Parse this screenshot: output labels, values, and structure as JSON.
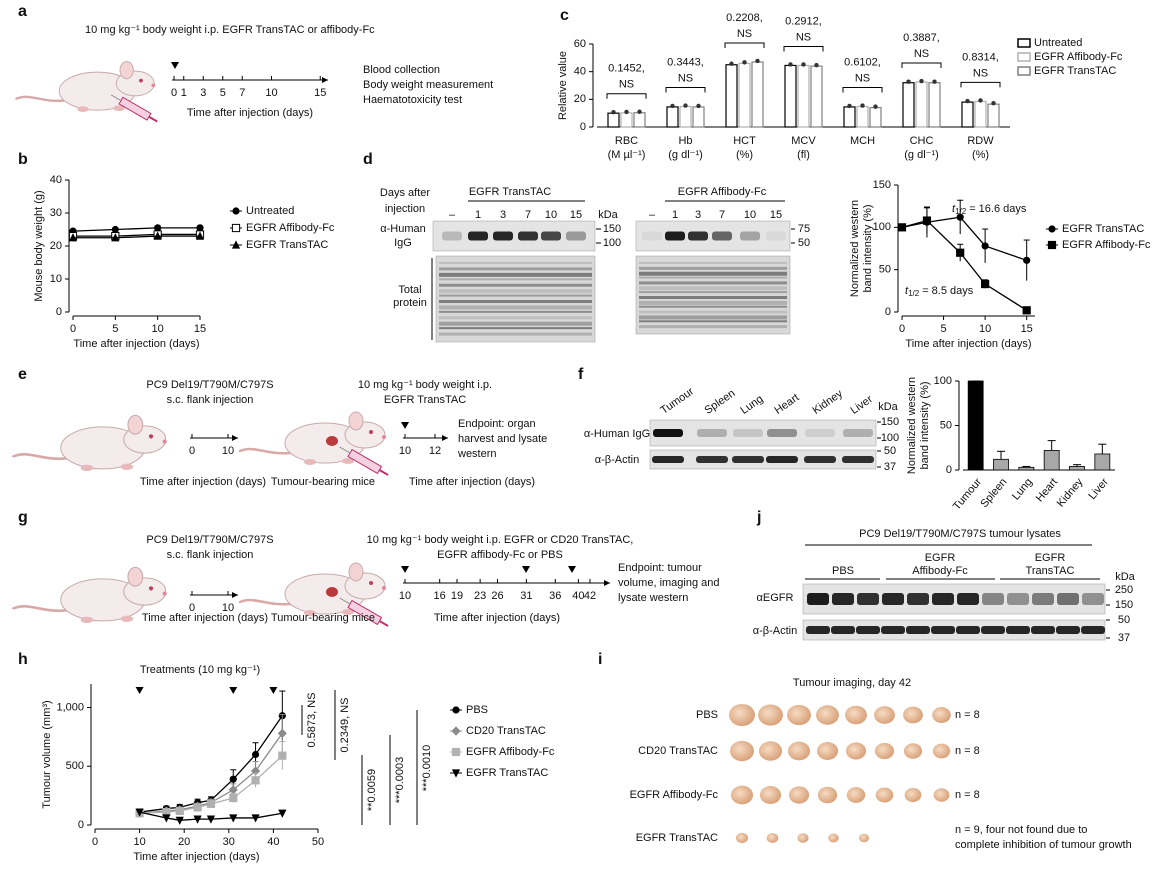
{
  "figure": {
    "panel_letters": [
      "a",
      "b",
      "c",
      "d",
      "e",
      "f",
      "g",
      "h",
      "i",
      "j"
    ],
    "a": {
      "dose": "10 mg kg⁻¹ body weight i.p. EGFR TransTAC or affibody-Fc",
      "timeline_ticks": [
        0,
        1,
        3,
        5,
        7,
        10,
        15
      ],
      "timeline_label": "Time after injection (days)",
      "outcomes": [
        "Blood collection",
        "Body weight measurement",
        "Haematotoxicity test"
      ]
    },
    "d": {
      "header": [
        "Days after",
        "injection"
      ],
      "groups": [
        "EGFR TransTAC",
        "EGFR Affibody-Fc"
      ],
      "lanes": [
        "–",
        "1",
        "3",
        "7",
        "10",
        "15"
      ],
      "kda": "kDa",
      "markers_left_blot": [
        "150",
        "100"
      ],
      "markers_right_blot": [
        "75",
        "50"
      ],
      "igg_label": [
        "α-Human",
        "IgG"
      ],
      "protein_label": [
        "Total",
        "protein"
      ]
    },
    "e": {
      "cell_line": [
        "PC9 Del19/T790M/C797S",
        "s.c. flank injection"
      ],
      "timeline1_ticks": [
        0,
        10
      ],
      "timeline_label": "Time after injection (days)",
      "mice_label": "Tumour-bearing mice",
      "dose": [
        "10 mg kg⁻¹ body weight i.p.",
        "EGFR TransTAC"
      ],
      "timeline2_ticks": [
        10,
        12
      ],
      "endpoint": [
        "Endpoint: organ",
        "harvest and lysate",
        "western"
      ]
    },
    "f": {
      "tissues": [
        "Tumour",
        "Spleen",
        "Lung",
        "Heart",
        "Kidney",
        "Liver"
      ],
      "kda": "kDa",
      "markers": [
        "150",
        "100",
        "50",
        "37"
      ],
      "rows": [
        "α-Human IgG",
        "α-β-Actin"
      ]
    },
    "g": {
      "cell_line": [
        "PC9 Del19/T790M/C797S",
        "s.c. flank injection"
      ],
      "timeline1_ticks": [
        0,
        10
      ],
      "timeline_label": "Time after injection (days)",
      "mice_label": "Tumour-bearing mice",
      "dose": [
        "10 mg kg⁻¹ body weight i.p. EGFR or CD20 TransTAC,",
        "EGFR affibody-Fc or PBS"
      ],
      "timeline2_ticks": [
        10,
        16,
        19,
        23,
        26,
        31,
        36,
        40,
        42
      ],
      "endpoint": [
        "Endpoint: tumour",
        "volume, imaging and",
        "lysate western"
      ]
    },
    "i": {
      "title": "Tumour imaging, day 42",
      "groups": [
        "PBS",
        "CD20 TransTAC",
        "EGFR Affibody-Fc",
        "EGFR TransTAC"
      ],
      "n_labels": [
        [
          "n = 8"
        ],
        [
          "n = 8"
        ],
        [
          "n = 8"
        ],
        [
          "n = 9, four not found due to",
          "complete inhibition of tumour growth"
        ]
      ]
    },
    "j": {
      "title": "PC9 Del19/T790M/C797S tumour lysates",
      "groups": [
        [
          "PBS"
        ],
        [
          "EGFR",
          "Affibody-Fc"
        ],
        [
          "EGFR",
          "TransTAC"
        ]
      ],
      "kda": "kDa",
      "markers": [
        "250",
        "150",
        "50",
        "37"
      ],
      "rows": [
        "αEGFR",
        "α-β-Actin"
      ]
    }
  },
  "chart_data": [
    {
      "type": "line",
      "xlabel": "Time after injection (days)",
      "ylabel": "Mouse body weight (g)",
      "x": [
        0,
        5,
        10,
        15
      ],
      "series": [
        {
          "name": "Untreated",
          "color": "#000000",
          "marker": "circle",
          "values": [
            24.5,
            25,
            25.5,
            25.5
          ]
        },
        {
          "name": "EGFR Affibody-Fc",
          "color": "#000000",
          "marker": "square-open",
          "values": [
            23,
            23,
            23.5,
            23.5
          ]
        },
        {
          "name": "EGFR TransTAC",
          "color": "#000000",
          "marker": "triangle",
          "values": [
            22.5,
            22.5,
            23,
            23
          ]
        }
      ],
      "xlim": [
        0,
        15
      ],
      "xticks": [
        0,
        5,
        10,
        15
      ],
      "ylim": [
        0,
        40
      ],
      "yticks": [
        0,
        10,
        20,
        30,
        40
      ]
    },
    {
      "type": "grouped_bar",
      "ylabel": "Relative value",
      "categories": [
        "RBC",
        "Hb",
        "HCT",
        "MCV",
        "MCH",
        "CHC",
        "RDW"
      ],
      "category_units": [
        "(M µl⁻¹)",
        "(g dl⁻¹)",
        "(%)",
        "(fl)",
        null,
        "(g dl⁻¹)",
        "(%)"
      ],
      "series": [
        {
          "name": "Untreated",
          "color": "#000000",
          "values": [
            10,
            14.5,
            45,
            44.5,
            14.5,
            32,
            18
          ]
        },
        {
          "name": "EGFR Affibody-Fc",
          "color": "#b0b0b0",
          "values": [
            10.2,
            14.8,
            46,
            44.5,
            14.8,
            32.5,
            18.5
          ]
        },
        {
          "name": "EGFR TransTAC",
          "color": "#808080",
          "values": [
            10.3,
            14.5,
            47,
            44,
            14,
            32,
            16.5
          ]
        }
      ],
      "pvalue_labels": [
        "0.1452,",
        "0.3443,",
        "0.2208,",
        "0.2912,",
        "0.6102,",
        "0.3887,",
        "0.8314,"
      ],
      "significance_labels": [
        "NS",
        "NS",
        "NS",
        "NS",
        "NS",
        "NS",
        "NS"
      ],
      "ylim": [
        0,
        60
      ],
      "yticks": [
        0,
        20,
        40,
        60
      ]
    },
    {
      "type": "line",
      "ylabel": [
        "Normalized western",
        "band intensity (%)"
      ],
      "xlabel": "Time after injection (days)",
      "x": [
        0,
        3,
        7,
        10,
        15
      ],
      "series": [
        {
          "name": "EGFR TransTAC",
          "color": "#000000",
          "marker": "circle",
          "values": [
            100,
            106,
            112,
            78,
            61
          ],
          "errors": [
            0,
            18,
            20,
            20,
            24
          ]
        },
        {
          "name": "EGFR Affibody-Fc",
          "color": "#000000",
          "marker": "square",
          "values": [
            100,
            108,
            70,
            33,
            2
          ],
          "errors": [
            0,
            15,
            10,
            5,
            2
          ]
        }
      ],
      "annotations": [
        {
          "symbol": "t",
          "subscript": "1/2",
          "text": "= 16.6 days"
        },
        {
          "symbol": "t",
          "subscript": "1/2",
          "text": "= 8.5 days"
        }
      ],
      "xlim": [
        0,
        16
      ],
      "xticks": [
        0,
        5,
        10,
        15
      ],
      "ylim": [
        0,
        150
      ],
      "yticks": [
        0,
        50,
        100,
        150
      ]
    },
    {
      "type": "bar",
      "ylabel": [
        "Normalized western",
        "band intensity (%)"
      ],
      "categories": [
        "Tumour",
        "Spleen",
        "Lung",
        "Heart",
        "Kidney",
        "Liver"
      ],
      "values": [
        100,
        12,
        3,
        22,
        4,
        18
      ],
      "errors": [
        0,
        9,
        1,
        11,
        2,
        11
      ],
      "colors": [
        "#000000",
        "#a8a8a8",
        "#a8a8a8",
        "#a8a8a8",
        "#a8a8a8",
        "#a8a8a8"
      ],
      "ylim": [
        0,
        100
      ],
      "yticks": [
        0,
        50,
        100
      ]
    },
    {
      "type": "line",
      "ylabel": "Tumour volume (mm³)",
      "xlabel": "Time after injection (days)",
      "x": [
        10,
        16,
        19,
        23,
        26,
        31,
        36,
        42
      ],
      "series": [
        {
          "name": "PBS",
          "color": "#000000",
          "marker": "circle",
          "values": [
            110,
            140,
            150,
            190,
            210,
            390,
            600,
            930
          ],
          "errors": [
            20,
            20,
            25,
            30,
            30,
            80,
            100,
            210
          ]
        },
        {
          "name": "CD20 TransTAC",
          "color": "#8a8a8a",
          "marker": "diamond",
          "values": [
            100,
            120,
            130,
            160,
            190,
            300,
            460,
            780
          ],
          "errors": [
            20,
            20,
            20,
            25,
            30,
            50,
            80,
            160
          ]
        },
        {
          "name": "EGFR Affibody-Fc",
          "color": "#b0b0b0",
          "marker": "square",
          "values": [
            100,
            110,
            120,
            150,
            180,
            230,
            380,
            590
          ],
          "errors": [
            20,
            20,
            20,
            25,
            30,
            40,
            60,
            120
          ]
        },
        {
          "name": "EGFR TransTAC",
          "color": "#000000",
          "marker": "triangle-down",
          "values": [
            110,
            60,
            40,
            50,
            50,
            60,
            60,
            100
          ],
          "errors": [
            20,
            15,
            10,
            10,
            10,
            15,
            15,
            25
          ]
        }
      ],
      "treatment_label": "Treatments (10 mg kg⁻¹)",
      "treatment_days": [
        10,
        31,
        40
      ],
      "stats": [
        "0.5873, NS",
        "0.2349, NS",
        "**0.0059",
        "***0.0003",
        "***0.0010"
      ],
      "xlim": [
        0,
        50
      ],
      "xticks": [
        0,
        10,
        20,
        30,
        40,
        50
      ],
      "ylim": [
        0,
        1200
      ],
      "yticks": [
        0,
        500,
        {
          "value": 1000,
          "label": "1,000"
        }
      ]
    }
  ]
}
